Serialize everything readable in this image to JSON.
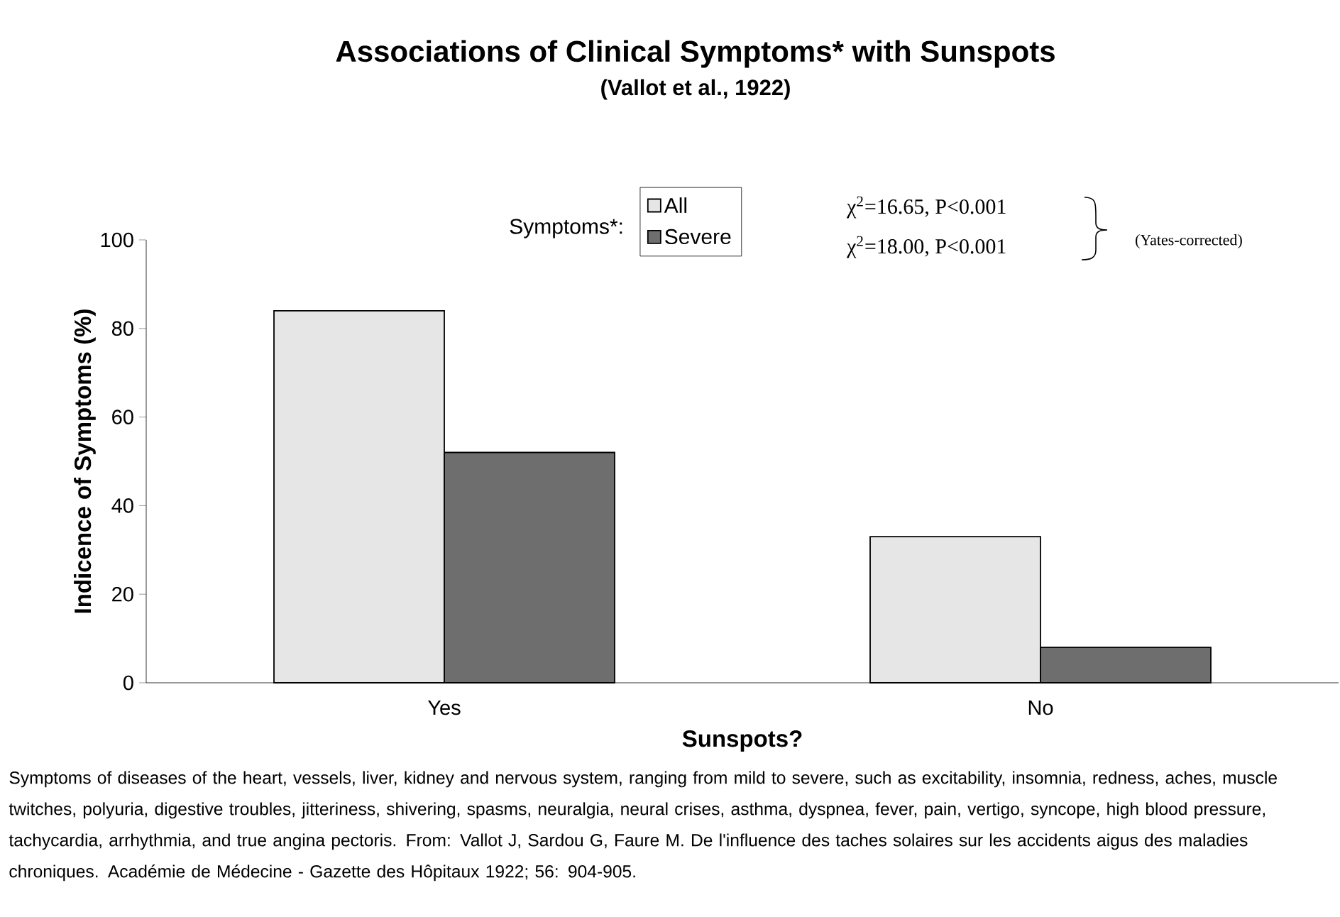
{
  "chart_data": {
    "type": "bar",
    "title": "Associations of Clinical Symptoms* with Sunspots",
    "subtitle": "(Vallot et al., 1922)",
    "xlabel": "Sunspots?",
    "ylabel": "Indicence of Symptoms (%)",
    "legend_title": "Symptoms*:",
    "legend": "top",
    "categories": [
      "Yes",
      "No"
    ],
    "series": [
      {
        "name": "All",
        "color": "#e6e6e6",
        "values": [
          84,
          33
        ]
      },
      {
        "name": "Severe",
        "color": "#6e6e6e",
        "values": [
          52,
          8
        ]
      }
    ],
    "ylim": [
      0,
      100
    ],
    "yticks": [
      0,
      20,
      40,
      60,
      80,
      100
    ],
    "grid": false,
    "annotations": [
      "χ$^{2}$=16.65, P<0.001",
      "χ$^{2}$=18.00, P<0.001",
      "(Yates-corrected)",
      "Symptoms of diseases of the heart, vessels, liver, kidney and nervous system, ranging from mild to severe, such as excitability, insomnia, redness, aches, muscle twitches, polyuria, digestive troubles, jitteriness, shivering, spasms, neuralgia, neural crises, asthma, dyspnea, fever, pain, vertigo, syncope, high blood pressure, tachycardia, arrhythmia, and true angina pectoris. From: Vallot J, Sardou G, Faure M. De l'influence des taches solaires sur les accidents aigus des maladies chroniques. Académie de Médecine -  Gazette des Hôpitaux 1922; 56: 904-905."
    ]
  }
}
